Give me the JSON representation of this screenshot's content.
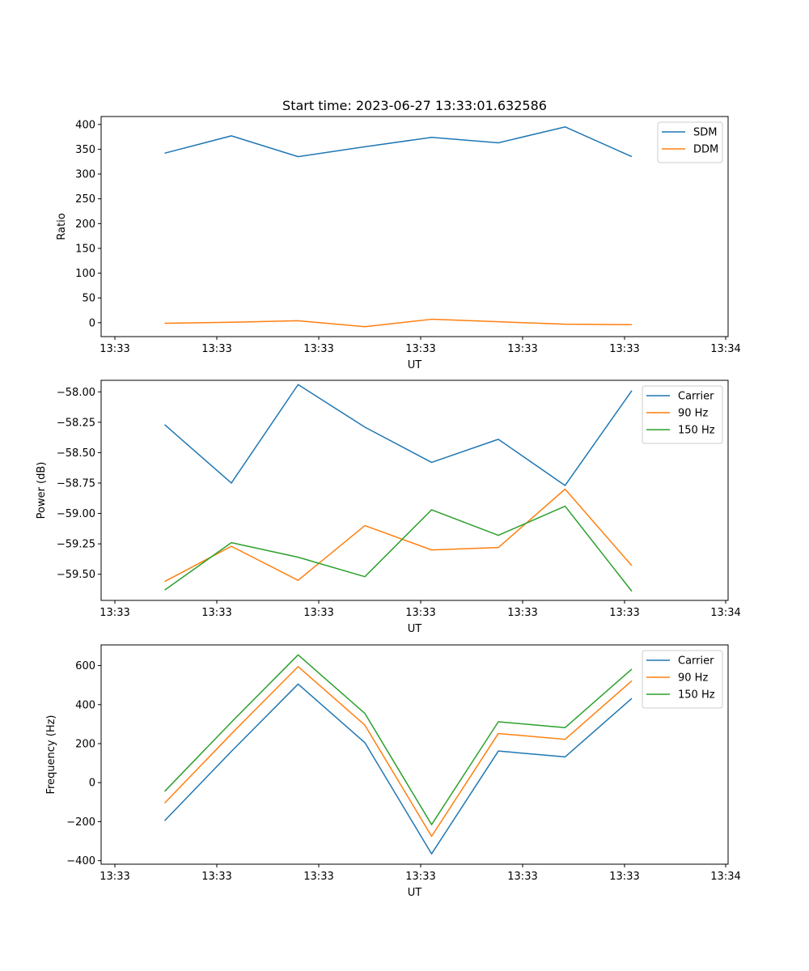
{
  "title": "Start time: 2023-06-27 13:33:01.632586",
  "colors": {
    "blue": "#1f77b4",
    "orange": "#ff7f0e",
    "green": "#2ca02c"
  },
  "chart_data": [
    {
      "type": "line",
      "xlabel": "UT",
      "ylabel": "Ratio",
      "xtick_labels": [
        "13:33",
        "13:33",
        "13:33",
        "13:33",
        "13:33",
        "13:33",
        "13:34"
      ],
      "ytick_labels": [
        "0",
        "50",
        "100",
        "150",
        "200",
        "250",
        "300",
        "350",
        "400"
      ],
      "ylim": [
        -28,
        416
      ],
      "legend": "top-right",
      "grid": false,
      "x": [
        1,
        2,
        3,
        4,
        5,
        6,
        7,
        8
      ],
      "series": [
        {
          "name": "SDM",
          "color": "#1f77b4",
          "values": [
            342,
            377,
            335,
            355,
            374,
            363,
            395,
            335
          ]
        },
        {
          "name": "DDM",
          "color": "#ff7f0e",
          "values": [
            -1,
            1,
            4,
            -8,
            7,
            2,
            -3,
            -4
          ]
        }
      ]
    },
    {
      "type": "line",
      "xlabel": "UT",
      "ylabel": "Power (dB)",
      "xtick_labels": [
        "13:33",
        "13:33",
        "13:33",
        "13:33",
        "13:33",
        "13:33",
        "13:34"
      ],
      "ytick_labels": [
        "−59.50",
        "−59.25",
        "−59.00",
        "−58.75",
        "−58.50",
        "−58.25",
        "−58.00"
      ],
      "ylim": [
        -59.715,
        -57.905
      ],
      "legend": "top-right",
      "grid": false,
      "x": [
        1,
        2,
        3,
        4,
        5,
        6,
        7,
        8
      ],
      "series": [
        {
          "name": "Carrier",
          "color": "#1f77b4",
          "values": [
            -58.27,
            -58.75,
            -57.94,
            -58.29,
            -58.58,
            -58.39,
            -58.77,
            -57.99
          ]
        },
        {
          "name": "90 Hz",
          "color": "#ff7f0e",
          "values": [
            -59.56,
            -59.27,
            -59.55,
            -59.1,
            -59.3,
            -59.28,
            -58.8,
            -59.43
          ]
        },
        {
          "name": "150 Hz",
          "color": "#2ca02c",
          "values": [
            -59.63,
            -59.24,
            -59.36,
            -59.52,
            -58.97,
            -59.18,
            -58.94,
            -59.64
          ]
        }
      ]
    },
    {
      "type": "line",
      "xlabel": "UT",
      "ylabel": "Frequency (Hz)",
      "xtick_labels": [
        "13:33",
        "13:33",
        "13:33",
        "13:33",
        "13:33",
        "13:33",
        "13:34"
      ],
      "ytick_labels": [
        "−400",
        "−200",
        "0",
        "200",
        "400",
        "600"
      ],
      "ylim": [
        -418,
        706
      ],
      "legend": "top-right",
      "grid": false,
      "x": [
        1,
        2,
        3,
        4,
        5,
        6,
        7,
        8
      ],
      "series": [
        {
          "name": "Carrier",
          "color": "#1f77b4",
          "values": [
            -195,
            160,
            505,
            205,
            -365,
            162,
            132,
            432
          ]
        },
        {
          "name": "90 Hz",
          "color": "#ff7f0e",
          "values": [
            -105,
            250,
            595,
            295,
            -275,
            252,
            222,
            522
          ]
        },
        {
          "name": "150 Hz",
          "color": "#2ca02c",
          "values": [
            -45,
            310,
            655,
            355,
            -215,
            312,
            282,
            582
          ]
        }
      ]
    }
  ]
}
